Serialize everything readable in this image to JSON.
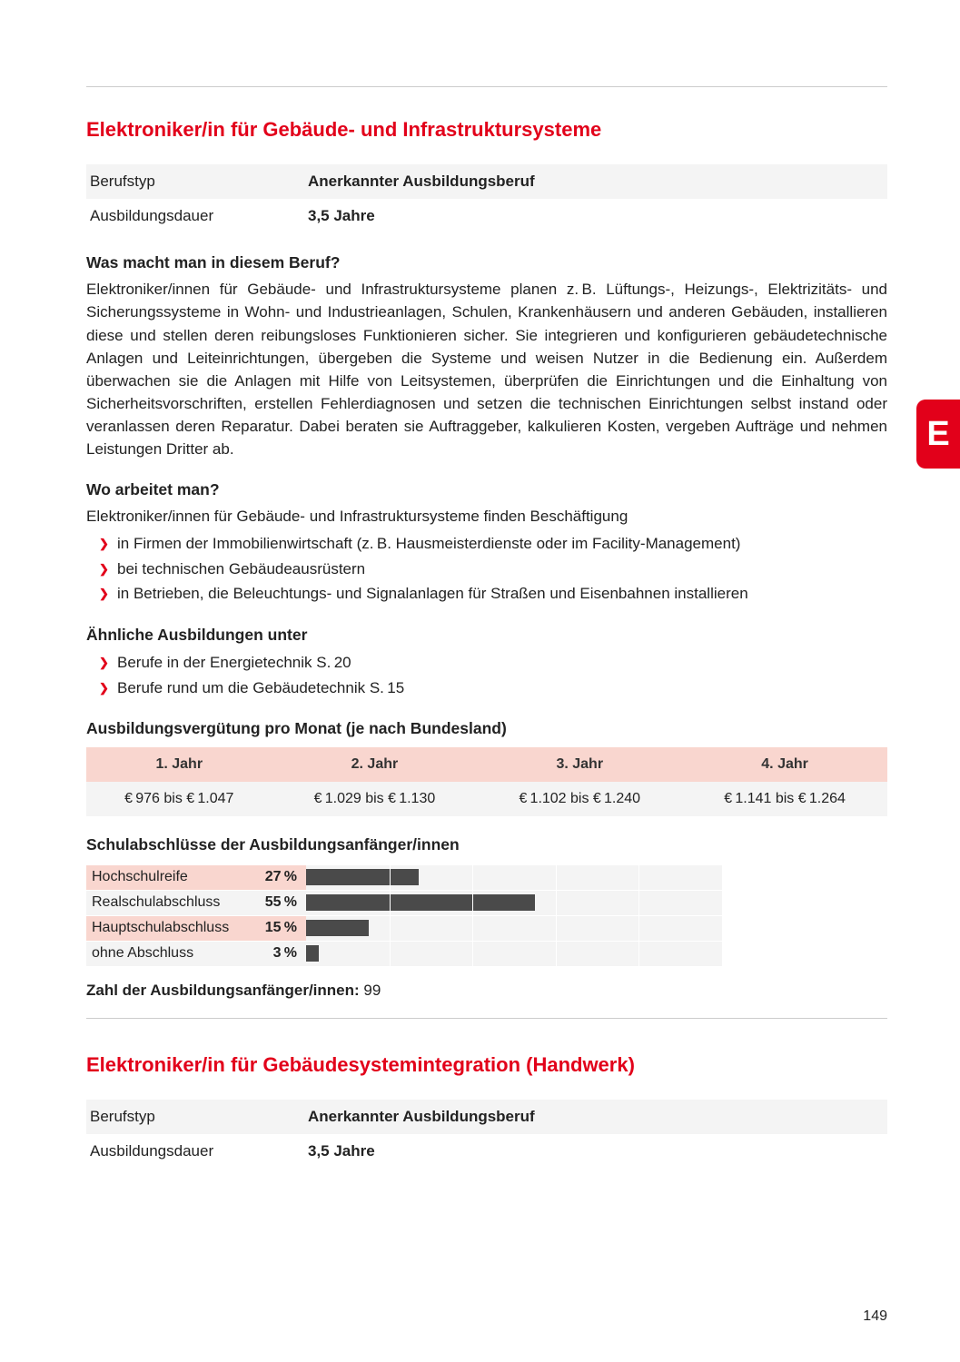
{
  "page_number": "149",
  "side_tab": "E",
  "colors": {
    "accent_red": "#e2001a",
    "row_alt_bg": "#f4f4f4",
    "table_header_bg": "#f9d6cf",
    "bar_color": "#4a4a4a",
    "rule_color": "#cccccc",
    "text": "#222222"
  },
  "job1": {
    "title": "Elektroniker/in für Gebäude- und Infrastruktursysteme",
    "info_rows": [
      {
        "label": "Berufstyp",
        "value": "Anerkannter Ausbildungsberuf"
      },
      {
        "label": "Ausbildungsdauer",
        "value": "3,5 Jahre"
      }
    ],
    "desc_heading": "Was macht man in diesem Beruf?",
    "desc_text": "Elektroniker/innen für Gebäude- und Infrastruktursysteme planen z. B. Lüftungs-, Heizungs-, Elektrizitäts- und Sicherungssysteme in Wohn- und Industrieanlagen, Schulen, Krankenhäusern und anderen Gebäuden, installieren diese und stellen deren reibungsloses Funktionieren sicher. Sie integrieren und konfigurieren gebäudetechnische Anlagen und Leiteinrichtungen, übergeben die Systeme und weisen Nutzer in die Bedienung ein. Außerdem überwachen sie die Anlagen mit Hilfe von Leitsystemen, überprüfen die Einrichtungen und die Einhaltung von Sicherheitsvorschriften, erstellen Fehlerdiagnosen und setzen die technischen Einrichtungen selbst instand oder veranlassen deren Reparatur. Dabei beraten sie Auftraggeber, kalkulieren Kosten, vergeben Aufträge und nehmen Leistungen Dritter ab.",
    "where_heading": "Wo arbeitet man?",
    "where_intro": "Elektroniker/innen für Gebäude- und Infrastruktursysteme finden Beschäftigung",
    "where_items": [
      "in Firmen der Immobilienwirtschaft (z. B. Hausmeisterdienste oder im Facility-Management)",
      "bei technischen Gebäudeausrüstern",
      "in Betrieben, die Beleuchtungs- und Signalanlagen für Straßen und Eisenbahnen installieren"
    ],
    "similar_heading": "Ähnliche Ausbildungen unter",
    "similar_items": [
      "Berufe in der Energietechnik S. 20",
      "Berufe rund um die Gebäudetechnik S. 15"
    ],
    "pay_heading": "Ausbildungsvergütung pro Monat (je nach Bundesland)",
    "pay_table": {
      "headers": [
        "1. Jahr",
        "2. Jahr",
        "3. Jahr",
        "4. Jahr"
      ],
      "row": [
        "€ 976 bis € 1.047",
        "€ 1.029 bis € 1.130",
        "€ 1.102 bis € 1.240",
        "€ 1.141 bis € 1.264"
      ]
    },
    "edu_heading": "Schulabschlüsse der Ausbildungsanfänger/innen",
    "edu_chart": {
      "type": "bar",
      "max_pct": 100,
      "bar_color": "#4a4a4a",
      "grid_positions_pct": [
        20,
        40,
        60,
        80
      ],
      "rows": [
        {
          "label": "Hochschulreife",
          "pct_label": "27 %",
          "pct": 27
        },
        {
          "label": "Realschulabschluss",
          "pct_label": "55 %",
          "pct": 55
        },
        {
          "label": "Hauptschulabschluss",
          "pct_label": "15 %",
          "pct": 15
        },
        {
          "label": "ohne Abschluss",
          "pct_label": "3 %",
          "pct": 3
        }
      ]
    },
    "count_label": "Zahl der Ausbildungsanfänger/innen:",
    "count_value": "99"
  },
  "job2": {
    "title": "Elektroniker/in für Gebäudesystemintegration (Handwerk)",
    "info_rows": [
      {
        "label": "Berufstyp",
        "value": "Anerkannter Ausbildungsberuf"
      },
      {
        "label": "Ausbildungsdauer",
        "value": "3,5 Jahre"
      }
    ]
  }
}
